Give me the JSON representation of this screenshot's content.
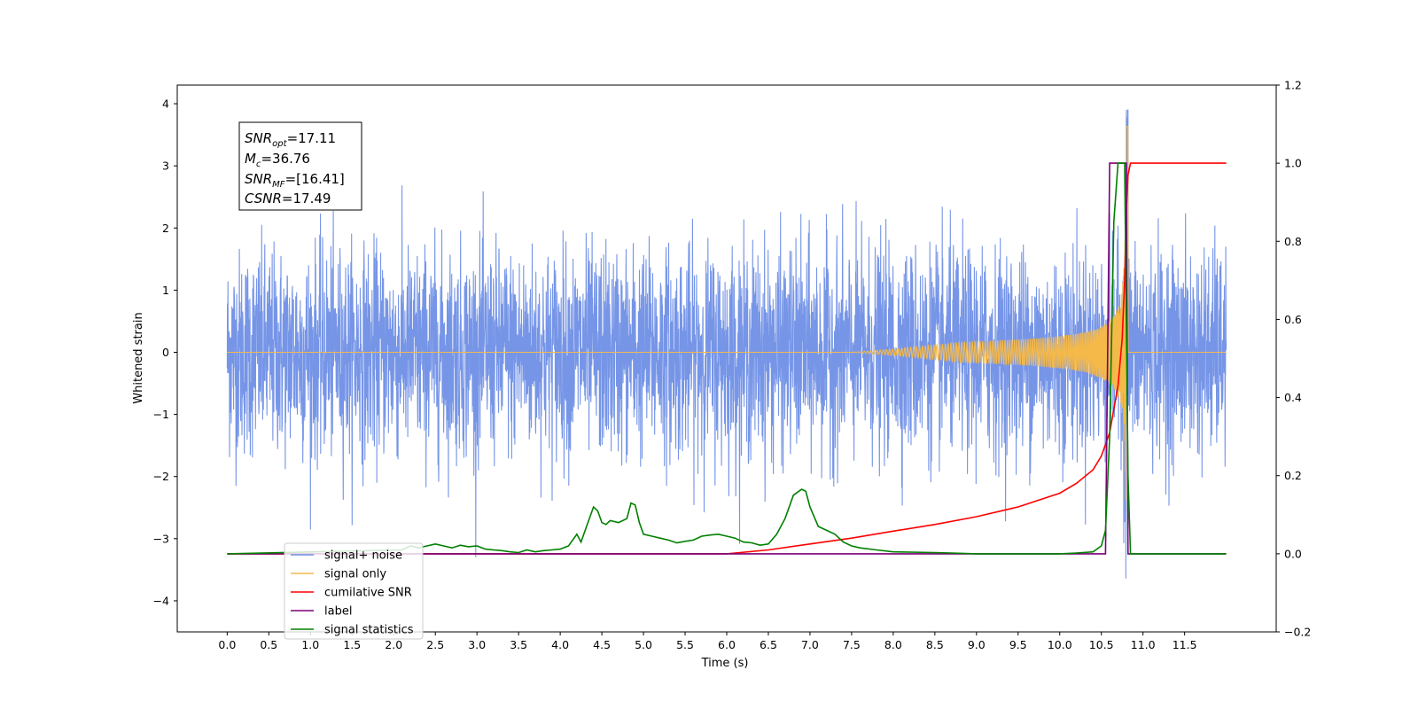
{
  "chart_data": {
    "type": "line",
    "xlabel": "Time (s)",
    "ylabel": "Whitened strain",
    "xlim": [
      -0.6,
      12.6
    ],
    "ylim": [
      -4.5,
      4.3
    ],
    "y2lim": [
      -0.2,
      1.2
    ],
    "x_ticks": [
      "0.0",
      "0.5",
      "1.0",
      "1.5",
      "2.0",
      "2.5",
      "3.0",
      "3.5",
      "4.0",
      "4.5",
      "5.0",
      "5.5",
      "6.0",
      "6.5",
      "7.0",
      "7.5",
      "8.0",
      "8.5",
      "9.0",
      "9.5",
      "10.0",
      "10.5",
      "11.0",
      "11.5"
    ],
    "y_ticks": [
      "4",
      "3",
      "2",
      "1",
      "0",
      "−1",
      "−2",
      "−3",
      "−4"
    ],
    "y2_ticks": [
      "1.2",
      "1.0",
      "0.8",
      "0.6",
      "0.4",
      "0.2",
      "0.0",
      "−0.2"
    ],
    "legend_position": "lower-left",
    "annotation": {
      "snr_opt_sym": "SNR",
      "snr_opt_sub": "opt",
      "snr_opt_val": "=17.11",
      "mc_sym": "M",
      "mc_sub": "c",
      "mc_val": "=36.76",
      "snr_mf_sym": "SNR",
      "snr_mf_sub": "MF",
      "snr_mf_val": "=[16.41]",
      "csnr_sym": "CSNR",
      "csnr_val": "=17.49"
    },
    "series": [
      {
        "name": "signal+ noise",
        "color": "#6f8fe6",
        "axis": "left",
        "noise_std": 0.82,
        "x_range": [
          0.0,
          12.0
        ]
      },
      {
        "name": "signal only",
        "color": "#f5b94a",
        "axis": "left",
        "chirp_peak_time": 10.8,
        "chirp_peak_amp": 3.7
      },
      {
        "name": "cumilative SNR",
        "color": "#ff0000",
        "axis": "right",
        "x": [
          0.0,
          6.0,
          6.5,
          7.0,
          7.5,
          8.0,
          8.5,
          9.0,
          9.5,
          10.0,
          10.2,
          10.4,
          10.5,
          10.6,
          10.7,
          10.75,
          10.78,
          10.8,
          10.82,
          10.85,
          12.0
        ],
        "y": [
          0.0,
          0.0,
          0.01,
          0.025,
          0.04,
          0.058,
          0.075,
          0.095,
          0.12,
          0.155,
          0.18,
          0.215,
          0.25,
          0.31,
          0.43,
          0.55,
          0.7,
          0.88,
          0.97,
          1.0,
          1.0
        ]
      },
      {
        "name": "label",
        "color": "#7b0077",
        "axis": "right",
        "x": [
          0.0,
          10.55,
          10.6,
          10.8,
          10.82,
          12.0
        ],
        "y": [
          0.0,
          0.0,
          1.0,
          1.0,
          0.0,
          0.0
        ]
      },
      {
        "name": "signal statistics",
        "color": "#008000",
        "axis": "right",
        "x": [
          0.0,
          2.1,
          2.2,
          2.3,
          2.4,
          2.5,
          2.6,
          2.7,
          2.8,
          2.9,
          3.0,
          3.1,
          3.2,
          3.3,
          3.4,
          3.5,
          3.6,
          3.7,
          3.8,
          3.9,
          4.0,
          4.1,
          4.2,
          4.25,
          4.3,
          4.4,
          4.45,
          4.5,
          4.55,
          4.6,
          4.7,
          4.8,
          4.85,
          4.9,
          4.95,
          5.0,
          5.1,
          5.2,
          5.3,
          5.4,
          5.5,
          5.6,
          5.7,
          5.8,
          5.9,
          6.0,
          6.1,
          6.2,
          6.3,
          6.4,
          6.5,
          6.6,
          6.7,
          6.8,
          6.9,
          6.95,
          7.0,
          7.1,
          7.2,
          7.3,
          7.4,
          7.5,
          7.6,
          7.8,
          8.0,
          8.5,
          8.7,
          9.0,
          9.5,
          10.0,
          10.2,
          10.4,
          10.5,
          10.55,
          10.6,
          10.65,
          10.7,
          10.78,
          10.82,
          10.85,
          12.0
        ],
        "y": [
          0.0,
          0.01,
          0.02,
          0.015,
          0.02,
          0.025,
          0.02,
          0.015,
          0.022,
          0.018,
          0.02,
          0.012,
          0.01,
          0.008,
          0.005,
          0.003,
          0.01,
          0.005,
          0.008,
          0.01,
          0.012,
          0.02,
          0.05,
          0.03,
          0.06,
          0.12,
          0.11,
          0.08,
          0.075,
          0.085,
          0.08,
          0.09,
          0.13,
          0.125,
          0.08,
          0.05,
          0.045,
          0.04,
          0.035,
          0.028,
          0.032,
          0.035,
          0.045,
          0.048,
          0.05,
          0.045,
          0.04,
          0.03,
          0.028,
          0.022,
          0.025,
          0.05,
          0.09,
          0.15,
          0.165,
          0.16,
          0.12,
          0.07,
          0.06,
          0.05,
          0.03,
          0.02,
          0.015,
          0.01,
          0.005,
          0.003,
          0.002,
          0.0,
          0.0,
          0.0,
          0.002,
          0.005,
          0.02,
          0.06,
          0.3,
          0.85,
          1.0,
          1.0,
          0.2,
          0.0,
          0.0
        ]
      }
    ]
  }
}
